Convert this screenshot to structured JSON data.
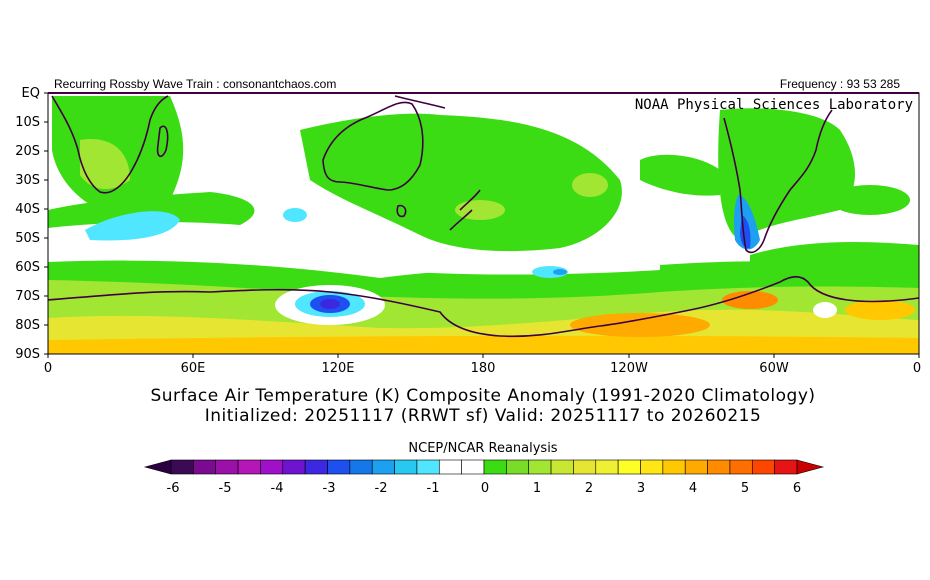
{
  "header": {
    "left_text": "Recurring Rossby Wave Train : consonantchaos.com",
    "right_text": "Frequency : 93 53 285",
    "lab_name": "NOAA Physical Sciences Laboratory"
  },
  "map": {
    "lat_labels": [
      "EQ",
      "10S",
      "20S",
      "30S",
      "40S",
      "50S",
      "60S",
      "70S",
      "80S",
      "90S"
    ],
    "lon_labels": [
      "0",
      "60E",
      "120E",
      "180",
      "120W",
      "60W",
      "0"
    ]
  },
  "title": {
    "line1": "Surface Air Temperature (K) Composite Anomaly (1991-2020 Climatology)",
    "line2": "Initialized: 20251117 (RRWT sf) Valid: 20251117 to 20260215"
  },
  "colorbar": {
    "label": "NCEP/NCAR Reanalysis",
    "ticks": [
      "-6",
      "-5",
      "-4",
      "-3",
      "-2",
      "-1",
      "0",
      "1",
      "2",
      "3",
      "4",
      "5",
      "6"
    ],
    "colors": [
      "#3c0a55",
      "#7a0a8f",
      "#9a10a8",
      "#b416b8",
      "#a010c8",
      "#6e14d0",
      "#3c28e0",
      "#1e50f0",
      "#1478e8",
      "#1ea0f0",
      "#28c8f0",
      "#50e6ff",
      "#ffffff",
      "#ffffff",
      "#3cdc14",
      "#78dc28",
      "#a0e632",
      "#c8e632",
      "#e6e632",
      "#f0f032",
      "#ffff28",
      "#ffe614",
      "#ffc800",
      "#ffaa00",
      "#ff8c00",
      "#ff6e00",
      "#ff4600",
      "#e61414"
    ],
    "low_arrow_color": "#2a0040",
    "high_arrow_color": "#c80000"
  }
}
